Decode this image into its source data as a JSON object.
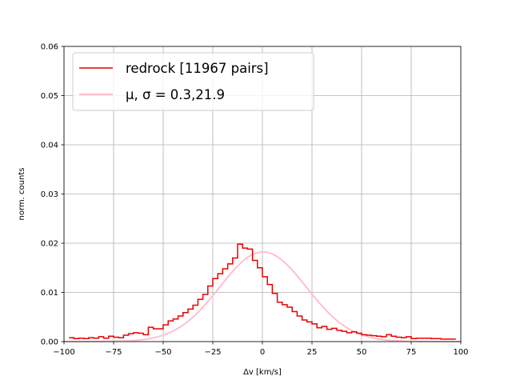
{
  "chart_data": {
    "type": "line",
    "xlabel": "Δv [km/s]",
    "ylabel": "norm. counts",
    "xlim": [
      -100,
      100
    ],
    "ylim": [
      0,
      0.06
    ],
    "xticks": [
      -100,
      -75,
      -50,
      -25,
      0,
      25,
      50,
      75,
      100
    ],
    "xtick_labels": [
      "−100",
      "−75",
      "−50",
      "−25",
      "0",
      "25",
      "50",
      "75",
      "100"
    ],
    "yticks": [
      0,
      0.01,
      0.02,
      0.03,
      0.04,
      0.05,
      0.06
    ],
    "ytick_labels": [
      "0.00",
      "0.01",
      "0.02",
      "0.03",
      "0.04",
      "0.05",
      "0.06"
    ],
    "grid": true,
    "legend_position": "top-left",
    "series": [
      {
        "name": "redrock [11967 pairs]",
        "kind": "step-histogram",
        "color": "#e60000",
        "bin_width": 2.5,
        "bin_edges_start": -97.5,
        "values": [
          0.0008,
          0.0006,
          0.0007,
          0.0006,
          0.0008,
          0.0007,
          0.001,
          0.0007,
          0.0011,
          0.0009,
          0.0008,
          0.0013,
          0.0016,
          0.0018,
          0.0017,
          0.0014,
          0.0029,
          0.0026,
          0.0026,
          0.0034,
          0.0042,
          0.0046,
          0.0052,
          0.0059,
          0.0066,
          0.0074,
          0.0086,
          0.0096,
          0.0113,
          0.0128,
          0.0138,
          0.0148,
          0.0158,
          0.017,
          0.0198,
          0.019,
          0.0188,
          0.0165,
          0.015,
          0.0132,
          0.0116,
          0.0098,
          0.008,
          0.0075,
          0.007,
          0.0061,
          0.0052,
          0.0044,
          0.004,
          0.0036,
          0.0028,
          0.0031,
          0.0025,
          0.0027,
          0.0023,
          0.0021,
          0.0018,
          0.002,
          0.0017,
          0.0014,
          0.0013,
          0.0012,
          0.0011,
          0.001,
          0.0014,
          0.0011,
          0.0009,
          0.0008,
          0.001,
          0.0006,
          0.0007,
          0.0007,
          0.0007,
          0.0006,
          0.0006,
          0.0005,
          0.0005,
          0.0005
        ]
      },
      {
        "name": "μ, σ = 0.3,21.9",
        "kind": "gaussian-fit",
        "color": "#ffc0cb",
        "mu": 0.3,
        "sigma": 21.9
      }
    ]
  }
}
